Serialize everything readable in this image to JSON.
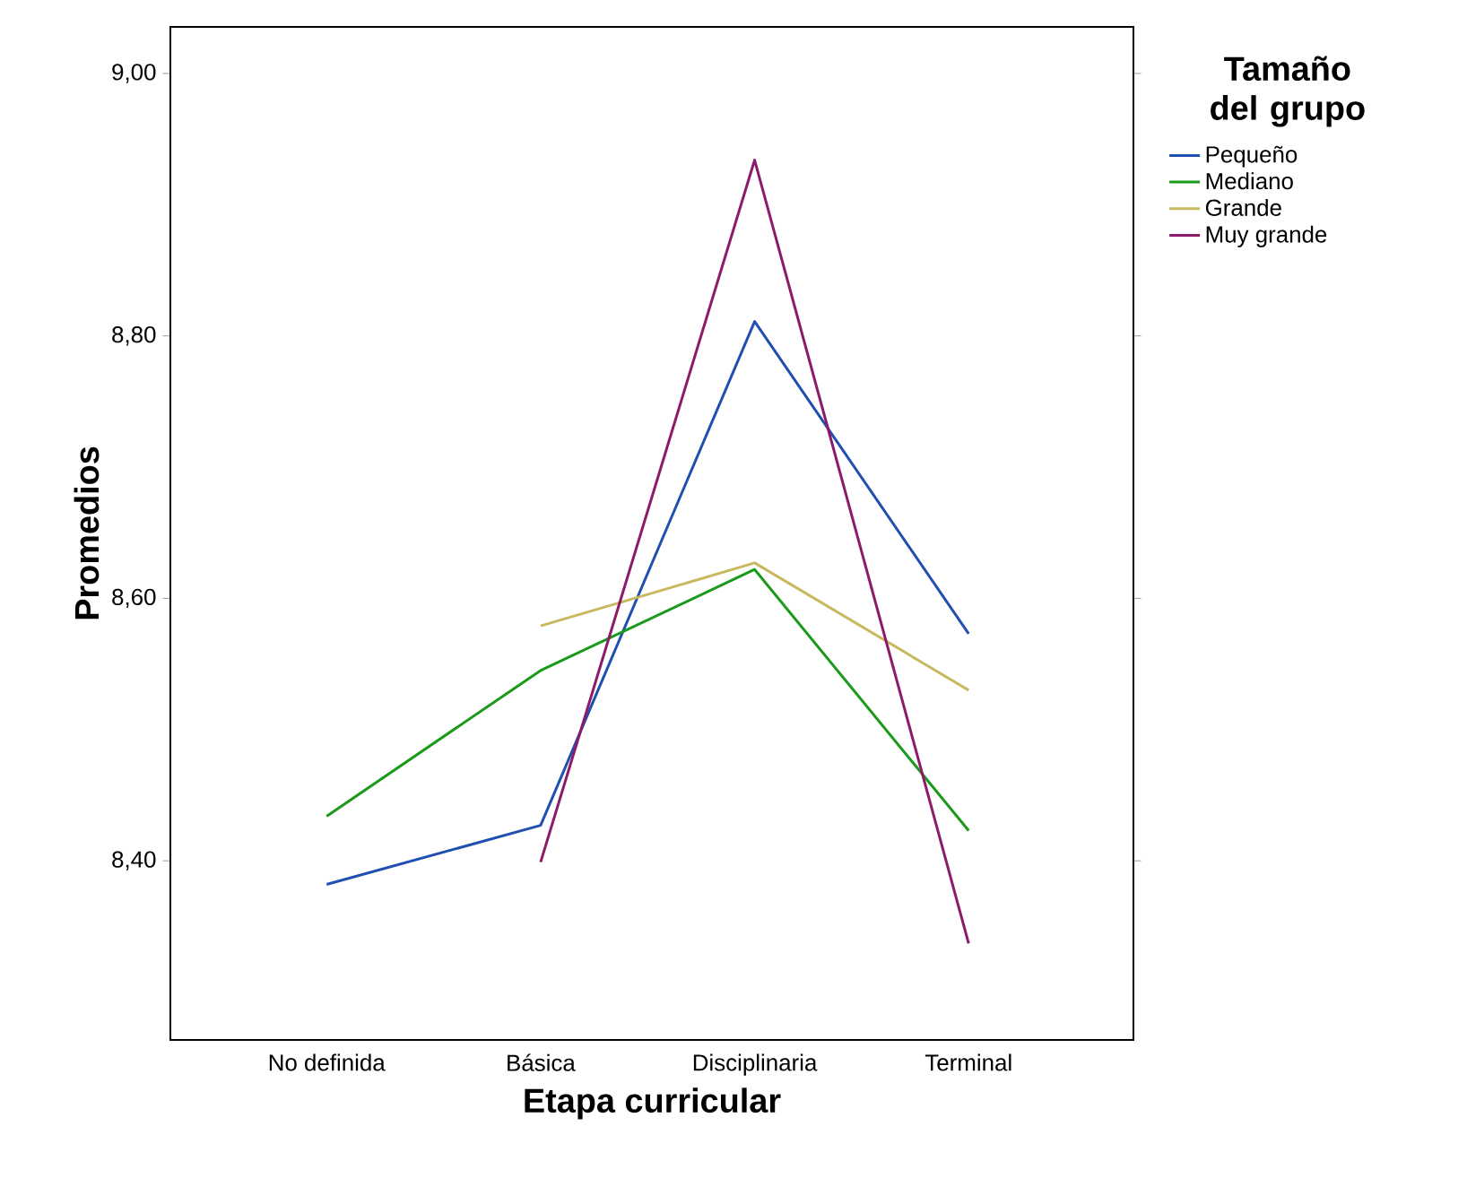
{
  "chart_data": {
    "type": "line",
    "xlabel": "Etapa curricular",
    "ylabel": "Promedios",
    "legend_title": "Tamaño del grupo",
    "legend": "right",
    "categories": [
      "No definida",
      "Básica",
      "Disciplinaria",
      "Terminal"
    ],
    "ylim": [
      8.2635,
      9.0355
    ],
    "yticks": [
      {
        "value": 8.4,
        "label": "8,40"
      },
      {
        "value": 8.6,
        "label": "8,60"
      },
      {
        "value": 8.8,
        "label": "8,80"
      },
      {
        "value": 9.0,
        "label": "9,00"
      }
    ],
    "series": [
      {
        "name": "Pequeño",
        "color": "#1f4fb0",
        "values": [
          8.382,
          8.427,
          8.811,
          8.573
        ]
      },
      {
        "name": "Mediano",
        "color": "#1a9a1a",
        "values": [
          8.434,
          8.545,
          8.622,
          8.423
        ]
      },
      {
        "name": "Grande",
        "color": "#c8b860",
        "values": [
          null,
          8.579,
          8.627,
          8.53
        ]
      },
      {
        "name": "Muy grande",
        "color": "#8b1a6b",
        "values": [
          null,
          8.399,
          8.934,
          8.337
        ]
      }
    ]
  }
}
